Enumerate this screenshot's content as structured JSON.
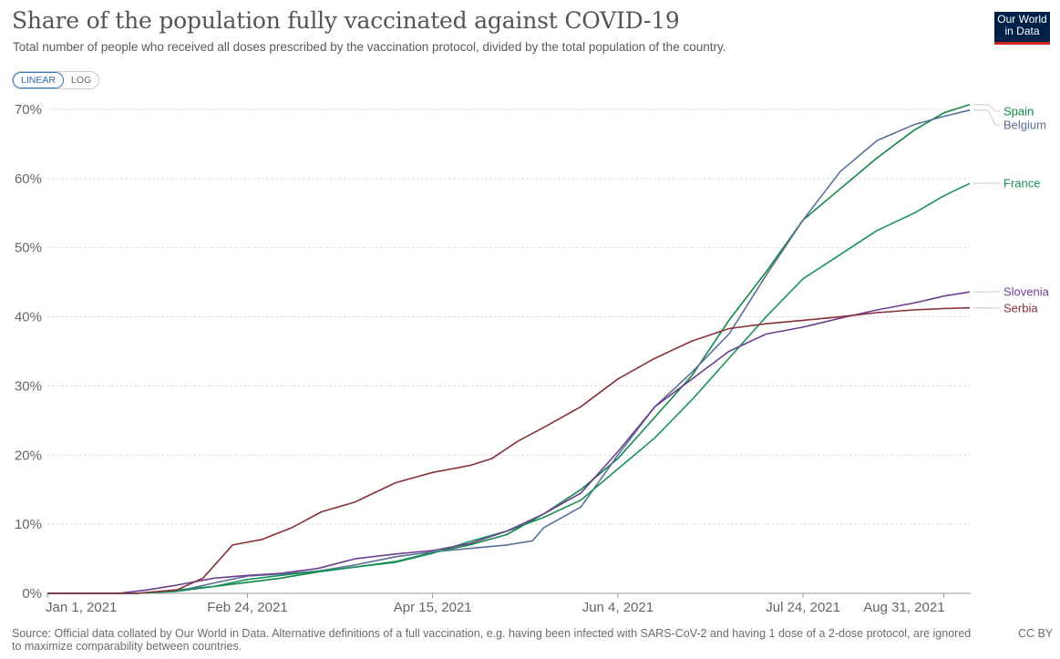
{
  "header": {
    "title": "Share of the population fully vaccinated against COVID-19",
    "subtitle": "Total number of people who received all doses prescribed by the vaccination protocol, divided by the total population of the country.",
    "logo_line1": "Our World",
    "logo_line2": "in Data"
  },
  "scale_toggle": {
    "linear_label": "LINEAR",
    "log_label": "LOG",
    "selected": "LINEAR"
  },
  "footer": {
    "source": "Source: Official data collated by Our World in Data. Alternative definitions of a full vaccination, e.g. having been infected with SARS-CoV-2 and having 1 dose of a 2-dose protocol, are ignored to maximize comparability between countries.",
    "license": "CC BY"
  },
  "colors": {
    "Spain": "#118745",
    "Belgium": "#5a6f98",
    "France": "#18915a",
    "Slovenia": "#6d3e91",
    "Serbia": "#883039",
    "grid": "#dddddd"
  },
  "chart_data": {
    "type": "line",
    "title": "Share of the population fully vaccinated against COVID-19",
    "x_start": "2021-01-01",
    "x_end": "2021-09-07",
    "xticks": [
      {
        "date": "2021-01-01",
        "label": "Jan 1, 2021"
      },
      {
        "date": "2021-02-24",
        "label": "Feb 24, 2021"
      },
      {
        "date": "2021-04-15",
        "label": "Apr 15, 2021"
      },
      {
        "date": "2021-06-04",
        "label": "Jun 4, 2021"
      },
      {
        "date": "2021-07-24",
        "label": "Jul 24, 2021"
      },
      {
        "date": "2021-08-31",
        "label": "Aug 31, 2021"
      }
    ],
    "yticks": [
      "0%",
      "10%",
      "20%",
      "30%",
      "40%",
      "50%",
      "60%",
      "70%"
    ],
    "ylim": [
      0,
      70
    ],
    "y_unit": "%",
    "grid": true,
    "series": [
      {
        "name": "Spain",
        "points": [
          [
            "2021-01-01",
            0
          ],
          [
            "2021-01-25",
            0
          ],
          [
            "2021-02-05",
            0.5
          ],
          [
            "2021-02-15",
            1.0
          ],
          [
            "2021-02-24",
            1.6
          ],
          [
            "2021-03-05",
            2.2
          ],
          [
            "2021-03-15",
            3.1
          ],
          [
            "2021-03-25",
            3.8
          ],
          [
            "2021-04-05",
            4.6
          ],
          [
            "2021-04-15",
            5.9
          ],
          [
            "2021-04-25",
            7.0
          ],
          [
            "2021-05-05",
            8.5
          ],
          [
            "2021-05-15",
            11.5
          ],
          [
            "2021-05-25",
            15.0
          ],
          [
            "2021-06-04",
            19.5
          ],
          [
            "2021-06-14",
            25.5
          ],
          [
            "2021-06-24",
            31.5
          ],
          [
            "2021-07-04",
            39.5
          ],
          [
            "2021-07-14",
            46.5
          ],
          [
            "2021-07-24",
            54.0
          ],
          [
            "2021-08-03",
            58.5
          ],
          [
            "2021-08-13",
            63.0
          ],
          [
            "2021-08-23",
            67.0
          ],
          [
            "2021-08-31",
            69.5
          ],
          [
            "2021-09-07",
            70.7
          ]
        ]
      },
      {
        "name": "Belgium",
        "points": [
          [
            "2021-01-01",
            0
          ],
          [
            "2021-01-25",
            0
          ],
          [
            "2021-02-05",
            0.3
          ],
          [
            "2021-02-15",
            1.5
          ],
          [
            "2021-02-24",
            2.5
          ],
          [
            "2021-03-05",
            2.8
          ],
          [
            "2021-03-15",
            3.2
          ],
          [
            "2021-03-25",
            4.1
          ],
          [
            "2021-04-05",
            5.3
          ],
          [
            "2021-04-15",
            6.0
          ],
          [
            "2021-04-25",
            6.5
          ],
          [
            "2021-05-05",
            7.0
          ],
          [
            "2021-05-12",
            7.6
          ],
          [
            "2021-05-15",
            9.5
          ],
          [
            "2021-05-25",
            12.5
          ],
          [
            "2021-06-04",
            20.0
          ],
          [
            "2021-06-14",
            27.0
          ],
          [
            "2021-06-24",
            32.0
          ],
          [
            "2021-07-04",
            37.5
          ],
          [
            "2021-07-14",
            46.0
          ],
          [
            "2021-07-24",
            54.0
          ],
          [
            "2021-08-03",
            61.0
          ],
          [
            "2021-08-13",
            65.5
          ],
          [
            "2021-08-23",
            67.8
          ],
          [
            "2021-08-31",
            69.0
          ],
          [
            "2021-09-07",
            69.9
          ]
        ]
      },
      {
        "name": "France",
        "points": [
          [
            "2021-01-01",
            0
          ],
          [
            "2021-01-25",
            0
          ],
          [
            "2021-02-05",
            0.3
          ],
          [
            "2021-02-15",
            1.0
          ],
          [
            "2021-02-24",
            2.0
          ],
          [
            "2021-03-05",
            2.6
          ],
          [
            "2021-03-15",
            3.2
          ],
          [
            "2021-03-25",
            3.8
          ],
          [
            "2021-04-05",
            4.5
          ],
          [
            "2021-04-15",
            5.8
          ],
          [
            "2021-04-25",
            7.5
          ],
          [
            "2021-05-05",
            9.0
          ],
          [
            "2021-05-15",
            11.0
          ],
          [
            "2021-05-25",
            13.5
          ],
          [
            "2021-06-04",
            18.0
          ],
          [
            "2021-06-14",
            22.5
          ],
          [
            "2021-06-24",
            28.0
          ],
          [
            "2021-07-04",
            34.0
          ],
          [
            "2021-07-14",
            40.0
          ],
          [
            "2021-07-24",
            45.5
          ],
          [
            "2021-08-03",
            49.0
          ],
          [
            "2021-08-13",
            52.5
          ],
          [
            "2021-08-23",
            55.0
          ],
          [
            "2021-08-31",
            57.5
          ],
          [
            "2021-09-07",
            59.3
          ]
        ]
      },
      {
        "name": "Slovenia",
        "points": [
          [
            "2021-01-01",
            0
          ],
          [
            "2021-01-20",
            0
          ],
          [
            "2021-01-28",
            0.5
          ],
          [
            "2021-02-05",
            1.2
          ],
          [
            "2021-02-15",
            2.2
          ],
          [
            "2021-02-24",
            2.6
          ],
          [
            "2021-03-05",
            2.9
          ],
          [
            "2021-03-15",
            3.6
          ],
          [
            "2021-03-25",
            5.0
          ],
          [
            "2021-04-05",
            5.7
          ],
          [
            "2021-04-15",
            6.2
          ],
          [
            "2021-04-25",
            7.2
          ],
          [
            "2021-05-05",
            9.0
          ],
          [
            "2021-05-15",
            11.5
          ],
          [
            "2021-05-25",
            14.5
          ],
          [
            "2021-06-04",
            20.5
          ],
          [
            "2021-06-14",
            27.0
          ],
          [
            "2021-06-24",
            31.0
          ],
          [
            "2021-07-04",
            35.0
          ],
          [
            "2021-07-14",
            37.5
          ],
          [
            "2021-07-24",
            38.5
          ],
          [
            "2021-08-03",
            39.8
          ],
          [
            "2021-08-13",
            41.0
          ],
          [
            "2021-08-23",
            42.0
          ],
          [
            "2021-08-31",
            43.0
          ],
          [
            "2021-09-07",
            43.6
          ]
        ]
      },
      {
        "name": "Serbia",
        "points": [
          [
            "2021-01-01",
            0
          ],
          [
            "2021-01-25",
            0
          ],
          [
            "2021-02-05",
            0.5
          ],
          [
            "2021-02-12",
            2.2
          ],
          [
            "2021-02-20",
            7.0
          ],
          [
            "2021-02-28",
            7.8
          ],
          [
            "2021-03-08",
            9.5
          ],
          [
            "2021-03-16",
            11.8
          ],
          [
            "2021-03-25",
            13.2
          ],
          [
            "2021-04-05",
            16.0
          ],
          [
            "2021-04-15",
            17.5
          ],
          [
            "2021-04-25",
            18.5
          ],
          [
            "2021-05-01",
            19.5
          ],
          [
            "2021-05-08",
            22.0
          ],
          [
            "2021-05-15",
            24.0
          ],
          [
            "2021-05-25",
            27.0
          ],
          [
            "2021-06-04",
            31.0
          ],
          [
            "2021-06-14",
            34.0
          ],
          [
            "2021-06-24",
            36.5
          ],
          [
            "2021-07-04",
            38.3
          ],
          [
            "2021-07-14",
            39.0
          ],
          [
            "2021-07-24",
            39.5
          ],
          [
            "2021-08-03",
            40.0
          ],
          [
            "2021-08-13",
            40.6
          ],
          [
            "2021-08-23",
            41.0
          ],
          [
            "2021-08-31",
            41.2
          ],
          [
            "2021-09-07",
            41.3
          ]
        ]
      }
    ]
  }
}
